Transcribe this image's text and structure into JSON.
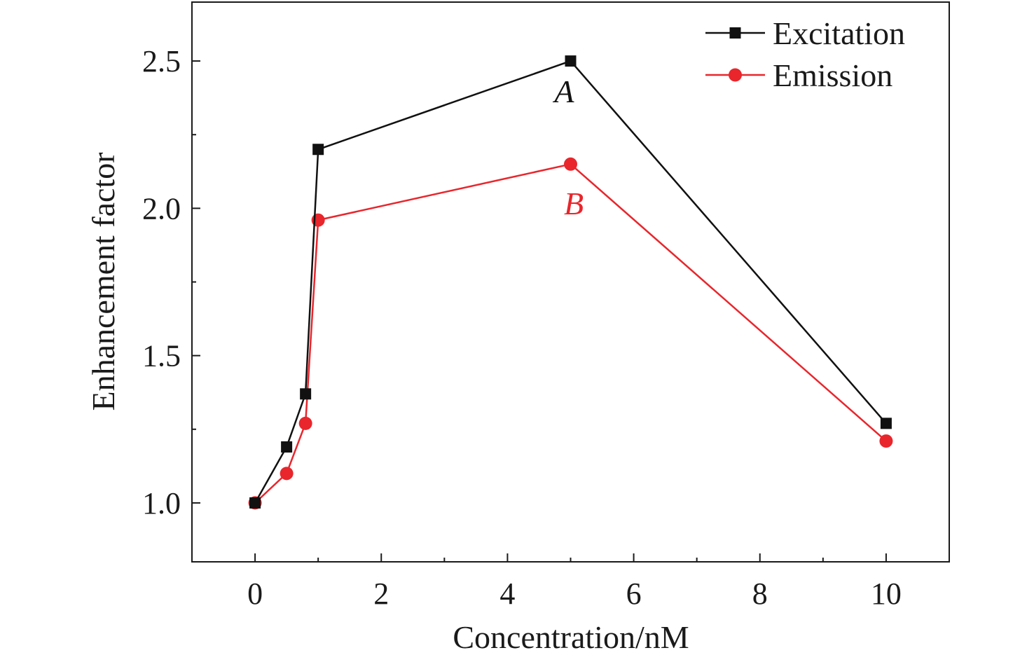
{
  "chart_data": {
    "type": "line",
    "title": "",
    "xlabel": "Concentration/nM",
    "ylabel": "Enhancement factor",
    "xlim": [
      -1,
      11
    ],
    "ylim": [
      0.8,
      2.7
    ],
    "xticks": [
      0,
      2,
      4,
      6,
      8,
      10
    ],
    "xtick_labels": [
      "0",
      "2",
      "4",
      "6",
      "8",
      "10"
    ],
    "yticks": [
      1.0,
      1.5,
      2.0,
      2.5
    ],
    "ytick_labels": [
      "1.0",
      "1.5",
      "2.0",
      "2.5"
    ],
    "grid": false,
    "legend_position": "top-right",
    "series": [
      {
        "name": "Excitation",
        "color": "#111111",
        "marker": "square",
        "x": [
          0,
          0.5,
          0.8,
          1,
          5,
          10
        ],
        "y": [
          1.0,
          1.19,
          1.37,
          2.2,
          2.5,
          1.27
        ]
      },
      {
        "name": "Emission",
        "color": "#e8262c",
        "marker": "circle",
        "x": [
          0,
          0.5,
          0.8,
          1,
          5,
          10
        ],
        "y": [
          1.0,
          1.1,
          1.27,
          1.96,
          2.15,
          1.21
        ]
      }
    ],
    "annotations": [
      {
        "text": "A",
        "x": 4.9,
        "y": 2.36,
        "color": "#111111"
      },
      {
        "text": "B",
        "x": 5.05,
        "y": 1.98,
        "color": "#e8262c"
      }
    ]
  }
}
